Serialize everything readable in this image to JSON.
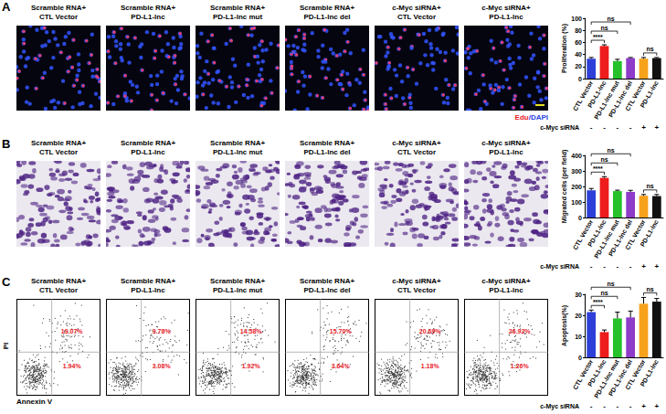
{
  "figure": {
    "panels": [
      {
        "label": "A",
        "kind": "fluorescence",
        "image_titles": [
          [
            "Scramble RNA+",
            "CTL Vector"
          ],
          [
            "Scramble RNA+",
            "PD-L1-lnc"
          ],
          [
            "Scramble RNA+",
            "PD-L1-lnc mut"
          ],
          [
            "Scramble RNA+",
            "PD-L1-lnc del"
          ],
          [
            "c-Myc siRNA+",
            "CTL Vector"
          ],
          [
            "c-Myc siRNA+",
            "PD-L1-lnc"
          ]
        ],
        "stain_label": [
          {
            "text": "Edu",
            "color": "#e8201f"
          },
          {
            "text": "/DAPI",
            "color": "#2b46e0"
          }
        ]
      },
      {
        "label": "B",
        "kind": "transwell",
        "image_titles": [
          [
            "Scramble RNA+",
            "CTL Vector"
          ],
          [
            "Scramble RNA+",
            "PD-L1-lnc"
          ],
          [
            "Scramble RNA+",
            "PD-L1-lnc mut"
          ],
          [
            "Scramble RNA+",
            "PD-L1-lnc del"
          ],
          [
            "c-Myc siRNA+",
            "CTL Vector"
          ],
          [
            "c-Myc siRNA+",
            "PD-L1-lnc"
          ]
        ]
      },
      {
        "label": "C",
        "kind": "flow",
        "image_titles": [
          [
            "Scramble RNA+",
            "CTL Vector"
          ],
          [
            "Scramble RNA+",
            "PD-L1-lnc"
          ],
          [
            "Scramble RNA+",
            "PD-L1-lnc mut"
          ],
          [
            "Scramble RNA+",
            "PD-L1-lnc del"
          ],
          [
            "c-Myc siRNA+",
            "CTL Vector"
          ],
          [
            "c-Myc siRNA+",
            "PD-L1-lnc"
          ]
        ],
        "x_label": "Annexin V",
        "y_label": "PI",
        "quadrant_labels": [
          [
            "19.07%",
            "1.94%"
          ],
          [
            "9.78%",
            "3.08%"
          ],
          [
            "14.58%",
            "1.92%"
          ],
          [
            "15.70%",
            "3.64%"
          ],
          [
            "20.69%",
            "1.18%"
          ],
          [
            "26.92%",
            "1.26%"
          ]
        ]
      }
    ]
  },
  "chart_data": [
    {
      "type": "bar",
      "y_label": "Proliferation (%)",
      "categories": [
        "CTL Vector",
        "PD-L1-lnc",
        "PD-L1-lnc mut",
        "PD-L1-lnc del",
        "CTL Vector",
        "PD-L1-lnc"
      ],
      "values": [
        33,
        54,
        29,
        34,
        33,
        34
      ],
      "errors": [
        2,
        2,
        3,
        1,
        2,
        1
      ],
      "colors": [
        "#2e3fd8",
        "#ee1c1c",
        "#26c12b",
        "#8e3bc9",
        "#f7a21b",
        "#111111"
      ],
      "ylim": [
        0,
        100
      ],
      "yticks": [
        0,
        20,
        40,
        60,
        80,
        100
      ],
      "grid": false,
      "comparisons": [
        {
          "from": 0,
          "to": 3,
          "label": "ns"
        },
        {
          "from": 0,
          "to": 2,
          "label": "ns"
        },
        {
          "from": 0,
          "to": 1,
          "label": "****"
        },
        {
          "from": 4,
          "to": 5,
          "label": "ns"
        }
      ],
      "row_label": "c-Myc siRNA",
      "row_values": [
        "-",
        "-",
        "-",
        "-",
        "+",
        "+"
      ]
    },
    {
      "type": "bar",
      "y_label": "Migrated cells (per field)",
      "categories": [
        "CTL Vector",
        "PD-L1-lnc",
        "PD-L1-lnc mut",
        "PD-L1-lnc del",
        "CTL Vector",
        "PD-L1-lnc"
      ],
      "values": [
        175,
        255,
        170,
        165,
        140,
        138
      ],
      "errors": [
        12,
        8,
        6,
        10,
        8,
        10
      ],
      "colors": [
        "#2e3fd8",
        "#ee1c1c",
        "#26c12b",
        "#8e3bc9",
        "#f7a21b",
        "#111111"
      ],
      "ylim": [
        0,
        400
      ],
      "yticks": [
        0,
        100,
        200,
        300,
        400
      ],
      "grid": false,
      "comparisons": [
        {
          "from": 0,
          "to": 3,
          "label": "ns"
        },
        {
          "from": 0,
          "to": 2,
          "label": "ns"
        },
        {
          "from": 0,
          "to": 1,
          "label": "****"
        },
        {
          "from": 4,
          "to": 5,
          "label": "ns"
        }
      ],
      "row_label": "c-Myc siRNA",
      "row_values": [
        "-",
        "-",
        "-",
        "-",
        "+",
        "+"
      ]
    },
    {
      "type": "bar",
      "y_label": "Apoptosis(%)",
      "categories": [
        "CTL Vector",
        "PD-L1-lnc",
        "PD-L1-lnc mut",
        "PD-L1-lnc del",
        "CTL Vector",
        "PD-L1-lnc"
      ],
      "values": [
        21.5,
        12,
        18.5,
        19,
        25.5,
        26.5
      ],
      "errors": [
        1,
        1,
        3,
        3,
        3,
        1.5
      ],
      "colors": [
        "#2e3fd8",
        "#ee1c1c",
        "#26c12b",
        "#8e3bc9",
        "#f7a21b",
        "#111111"
      ],
      "ylim": [
        0,
        30
      ],
      "yticks": [
        0,
        10,
        20,
        30
      ],
      "grid": false,
      "comparisons": [
        {
          "from": 0,
          "to": 3,
          "label": "ns"
        },
        {
          "from": 0,
          "to": 2,
          "label": "ns"
        },
        {
          "from": 0,
          "to": 1,
          "label": "****"
        },
        {
          "from": 4,
          "to": 5,
          "label": "ns"
        }
      ],
      "row_label": "c-Myc siRNA",
      "row_values": [
        "-",
        "-",
        "-",
        "-",
        "+",
        "+"
      ]
    }
  ]
}
